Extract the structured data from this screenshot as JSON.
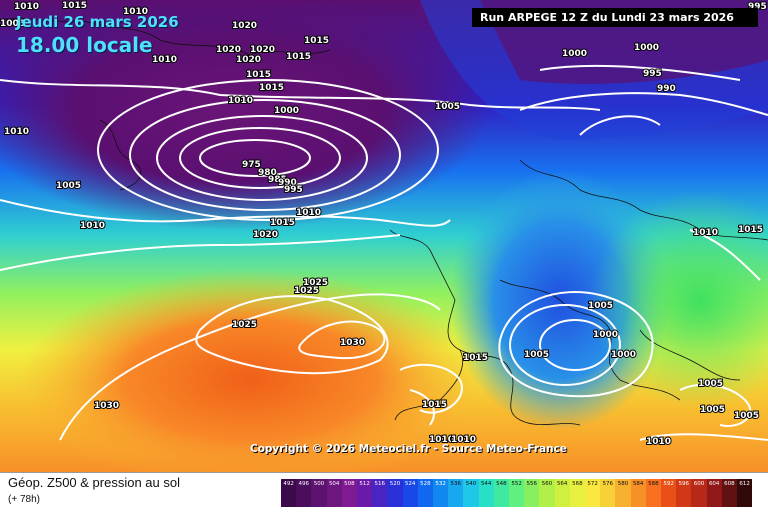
{
  "header": {
    "date": "Jeudi 26 mars 2026",
    "time": "18.00 locale",
    "run": "Run ARPEGE 12 Z du Lundi 23 mars 2026"
  },
  "copyright": "Copyright © 2026 Meteociel.fr - Source Meteo-France",
  "legend": {
    "title": "Géop. Z500 & pression au sol",
    "subtitle": "(+ 78h)",
    "scale_values": [
      "492",
      "496",
      "500",
      "504",
      "508",
      "512",
      "516",
      "520",
      "524",
      "528",
      "532",
      "536",
      "540",
      "544",
      "548",
      "552",
      "556",
      "560",
      "564",
      "568",
      "572",
      "576",
      "580",
      "584",
      "588",
      "592",
      "596",
      "600",
      "604",
      "608",
      "612"
    ],
    "scale_colors": [
      "#3a0a4a",
      "#4a0e5c",
      "#5c126e",
      "#6e1680",
      "#801a92",
      "#6a1aa8",
      "#4a24c0",
      "#2a30d8",
      "#1848e8",
      "#1068f0",
      "#1088f0",
      "#18a8f0",
      "#20c8e8",
      "#28e0c8",
      "#40e8a0",
      "#60f080",
      "#88f060",
      "#b0f048",
      "#d0f040",
      "#e8f040",
      "#f8e840",
      "#f8d038",
      "#f8b030",
      "#f89028",
      "#f87020",
      "#e85018",
      "#d03818",
      "#b82818",
      "#901818",
      "#601010",
      "#300808"
    ]
  },
  "isobars": [
    "1010",
    "1015",
    "1010",
    "1005",
    "1020",
    "1020",
    "1020",
    "1015",
    "1010",
    "1020",
    "1015",
    "1015",
    "1010",
    "1015",
    "1010",
    "1005",
    "1010",
    "1000",
    "975",
    "980",
    "985",
    "990",
    "995",
    "1010",
    "1015",
    "1020",
    "1025",
    "1025",
    "1025",
    "1030",
    "1030",
    "1000",
    "1000",
    "995",
    "990",
    "1005",
    "1010",
    "1015",
    "1005",
    "1000",
    "1000",
    "1005",
    "1015",
    "1015",
    "1010",
    "1010",
    "1010",
    "1005",
    "1005",
    "1005",
    "995"
  ]
}
